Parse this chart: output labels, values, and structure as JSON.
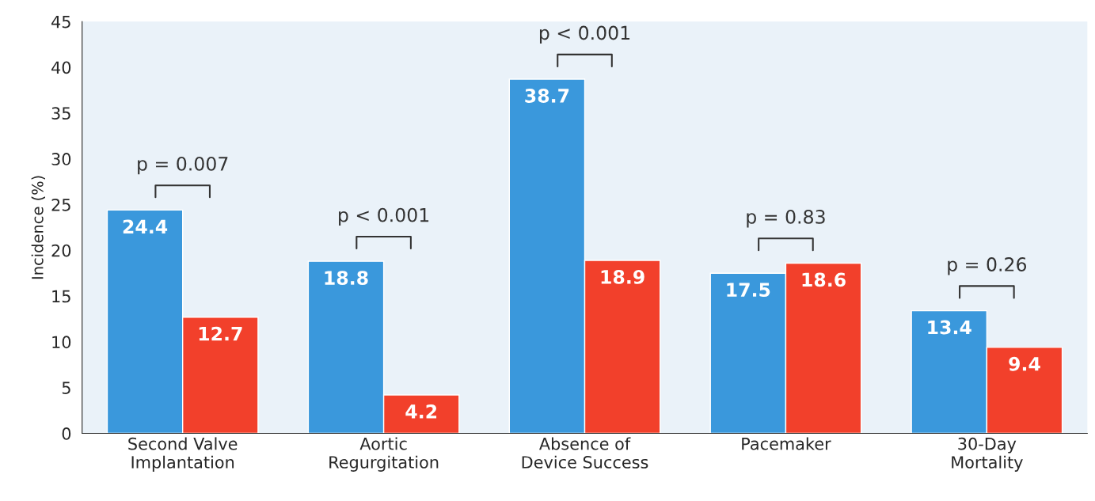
{
  "chart_data": {
    "type": "bar",
    "ylabel": "Incidence (%)",
    "categories": [
      "Second Valve\nImplantation",
      "Aortic\nRegurgitation",
      "Absence of\nDevice Success",
      "Pacemaker",
      "30-Day\nMortality"
    ],
    "series": [
      {
        "color": "#3a98dc",
        "values": [
          24.4,
          18.8,
          38.7,
          17.5,
          13.4
        ]
      },
      {
        "color": "#f2402b",
        "values": [
          12.7,
          4.2,
          18.9,
          18.6,
          9.4
        ]
      }
    ],
    "ylim": [
      0,
      45
    ],
    "yticks": [
      0,
      5,
      10,
      15,
      20,
      25,
      30,
      35,
      40,
      45
    ],
    "grid": false,
    "legend": false,
    "data_labels": true,
    "annotations": [
      "p = 0.007",
      "p < 0.001",
      "p < 0.001",
      "p = 0.83",
      "p = 0.26"
    ]
  }
}
